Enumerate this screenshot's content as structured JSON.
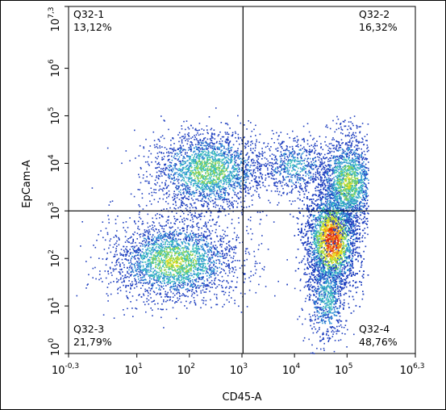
{
  "chart_data": {
    "type": "scatter",
    "title": "",
    "xlabel": "CD45-A",
    "ylabel": "EpCam-A",
    "x_scale": "log",
    "y_scale": "log",
    "xlim_log10": [
      -0.3,
      6.3
    ],
    "ylim_log10": [
      0,
      7.3
    ],
    "x_ticks": [
      {
        "base": "10",
        "exp": "-0,3",
        "value": -0.3
      },
      {
        "base": "10",
        "exp": "1",
        "value": 1
      },
      {
        "base": "10",
        "exp": "2",
        "value": 2
      },
      {
        "base": "10",
        "exp": "3",
        "value": 3
      },
      {
        "base": "10",
        "exp": "4",
        "value": 4
      },
      {
        "base": "10",
        "exp": "5",
        "value": 5
      },
      {
        "base": "10",
        "exp": "6,3",
        "value": 6.3
      }
    ],
    "y_ticks": [
      {
        "base": "10",
        "exp": "0",
        "value": 0
      },
      {
        "base": "10",
        "exp": "1",
        "value": 1
      },
      {
        "base": "10",
        "exp": "2",
        "value": 2
      },
      {
        "base": "10",
        "exp": "3",
        "value": 3
      },
      {
        "base": "10",
        "exp": "4",
        "value": 4
      },
      {
        "base": "10",
        "exp": "5",
        "value": 5
      },
      {
        "base": "10",
        "exp": "6",
        "value": 6
      },
      {
        "base": "10",
        "exp": "7,3",
        "value": 7.3
      }
    ],
    "gate": {
      "x_log10": 3.02,
      "y_log10": 3.0
    },
    "quadrants": [
      {
        "name": "Q32-1",
        "percent": "13,12%",
        "position": "top-left"
      },
      {
        "name": "Q32-2",
        "percent": "16,32%",
        "position": "top-right"
      },
      {
        "name": "Q32-3",
        "percent": "21,79%",
        "position": "bottom-left"
      },
      {
        "name": "Q32-4",
        "percent": "48,76%",
        "position": "bottom-right"
      }
    ],
    "populations": [
      {
        "cx": 2.35,
        "cy": 3.85,
        "sx": 0.55,
        "sy": 0.42,
        "n": 2300,
        "peak": 0.55
      },
      {
        "cx": 1.7,
        "cy": 1.95,
        "sx": 0.6,
        "sy": 0.42,
        "n": 2600,
        "peak": 0.6
      },
      {
        "cx": 4.0,
        "cy": 3.95,
        "sx": 0.35,
        "sy": 0.3,
        "n": 600,
        "peak": 0.35
      },
      {
        "cx": 4.7,
        "cy": 2.4,
        "sx": 0.25,
        "sy": 0.55,
        "n": 5200,
        "peak": 1.0
      },
      {
        "cx": 5.0,
        "cy": 3.6,
        "sx": 0.28,
        "sy": 0.5,
        "n": 1800,
        "peak": 0.6
      },
      {
        "cx": 4.6,
        "cy": 1.2,
        "sx": 0.2,
        "sy": 0.5,
        "n": 700,
        "peak": 0.4
      }
    ],
    "density_colors": [
      "#1f3fbf",
      "#2f8fd6",
      "#3cc0b8",
      "#8fd34a",
      "#e8e020",
      "#f08a1a",
      "#e02010"
    ]
  }
}
